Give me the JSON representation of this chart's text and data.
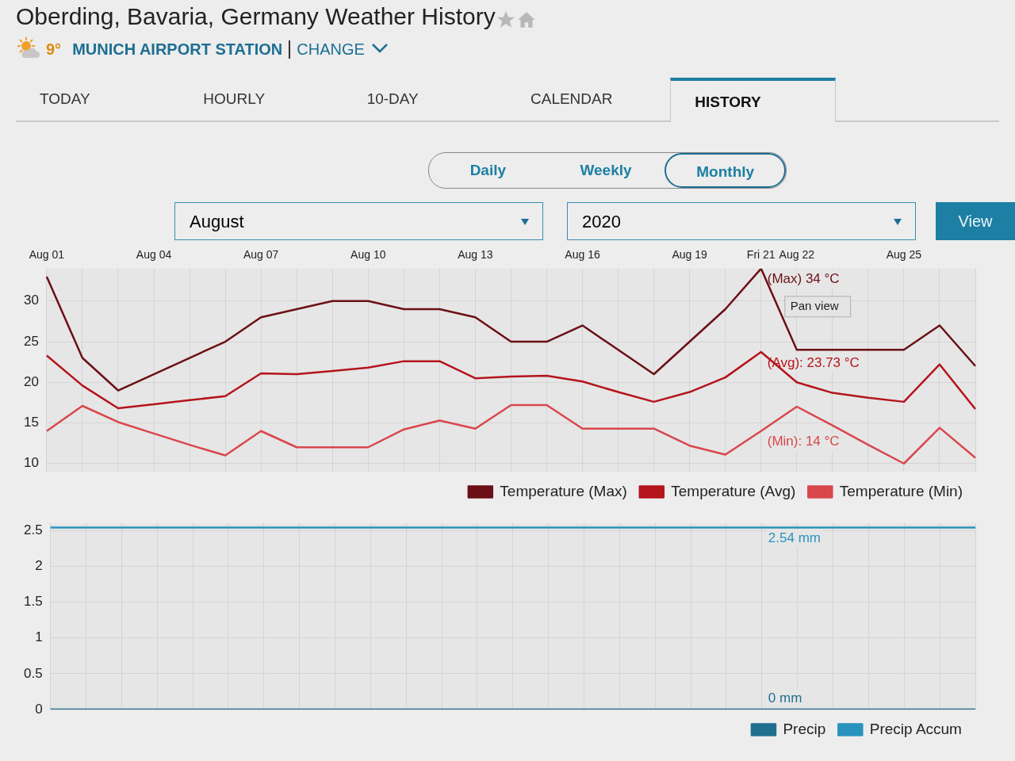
{
  "chart_data": [
    {
      "type": "other",
      "title": "Oberding, Bavaria, Germany Weather History",
      "annotations": [
        "9°",
        "MUNICH AIRPORT STATION",
        "CHANGE",
        "TODAY",
        "HOURLY",
        "10-DAY",
        "CALENDAR",
        "HISTORY",
        "Daily",
        "Weekly",
        "Monthly",
        "August",
        "2020",
        "View"
      ]
    },
    {
      "type": "line",
      "categories": [
        "Aug 01",
        null,
        null,
        "Aug 04",
        null,
        null,
        "Aug 07",
        null,
        null,
        "Aug 10",
        null,
        null,
        "Aug 13",
        null,
        null,
        "Aug 16",
        null,
        null,
        "Aug 19",
        null,
        "Fri 21",
        "Aug 22",
        null,
        null,
        "Aug 25",
        null,
        null
      ],
      "series": [
        {
          "name": "Temperature (Max)",
          "color": "#6b1016",
          "values": [
            33,
            23,
            19,
            21,
            23,
            25,
            28,
            29,
            30,
            30,
            29,
            29,
            28,
            25,
            25,
            27,
            24,
            21,
            25,
            29,
            34,
            24,
            24,
            24,
            24,
            27,
            22
          ],
          "value_labels": [
            null,
            null,
            null,
            null,
            null,
            null,
            null,
            null,
            null,
            null,
            null,
            null,
            null,
            null,
            null,
            null,
            null,
            null,
            null,
            null,
            "(Max) 34 °C",
            null,
            null,
            null,
            null,
            null,
            null
          ]
        },
        {
          "name": "Temperature (Avg)",
          "color": "#b5141c",
          "values": [
            23.3,
            19.6,
            16.8,
            17.3,
            17.8,
            18.3,
            21.1,
            21,
            21.4,
            21.8,
            22.6,
            22.6,
            20.5,
            20.7,
            20.8,
            20.1,
            18.8,
            17.6,
            18.8,
            20.6,
            23.73,
            20,
            18.7,
            18.1,
            17.6,
            22.2,
            16.7
          ],
          "value_labels": [
            null,
            null,
            null,
            null,
            null,
            null,
            null,
            null,
            null,
            null,
            null,
            null,
            null,
            null,
            null,
            null,
            null,
            null,
            null,
            null,
            "(Avg): 23.73 °C",
            null,
            null,
            null,
            null,
            null,
            null
          ]
        },
        {
          "name": "Temperature (Min)",
          "color": "#d9474c",
          "values": [
            14,
            17.1,
            15.1,
            13.7,
            12.3,
            11,
            14,
            12,
            12,
            12,
            14.2,
            15.3,
            14.3,
            17.2,
            17.2,
            14.3,
            14.3,
            14.3,
            12.2,
            11.1,
            14,
            17,
            14.7,
            12.3,
            10,
            14.4,
            10.7
          ],
          "value_labels": [
            null,
            null,
            null,
            null,
            null,
            null,
            null,
            null,
            null,
            null,
            null,
            null,
            null,
            null,
            null,
            null,
            null,
            null,
            null,
            null,
            "(Min): 14 °C",
            null,
            null,
            null,
            null,
            null,
            null
          ]
        }
      ],
      "ylim": [
        9,
        34
      ],
      "yticks": [
        10,
        15,
        20,
        25,
        30
      ],
      "grid": true,
      "legend": "bottom right",
      "marker": "none",
      "line_style": "solid",
      "annotations": [
        "Pan view"
      ]
    },
    {
      "type": "line",
      "categories": [
        null,
        null,
        null,
        null,
        null,
        null,
        null,
        null,
        null,
        null,
        null,
        null,
        null,
        null,
        null,
        null,
        null,
        null,
        null,
        null,
        null,
        null,
        null,
        null,
        null,
        null,
        null
      ],
      "series": [
        {
          "name": "Precip",
          "color": "#1f6f8f",
          "values": [
            0,
            0,
            0,
            0,
            0,
            0,
            0,
            0,
            0,
            0,
            0,
            0,
            0,
            0,
            0,
            0,
            0,
            0,
            0,
            0,
            0,
            0,
            0,
            0,
            0,
            0,
            0
          ],
          "value_labels": [
            null,
            null,
            null,
            null,
            null,
            null,
            null,
            null,
            null,
            null,
            null,
            null,
            null,
            null,
            null,
            null,
            null,
            null,
            null,
            null,
            "0 mm",
            null,
            null,
            null,
            null,
            null,
            null
          ]
        },
        {
          "name": "Precip Accum",
          "color": "#2a93bd",
          "values": [
            2.54,
            2.54,
            2.54,
            2.54,
            2.54,
            2.54,
            2.54,
            2.54,
            2.54,
            2.54,
            2.54,
            2.54,
            2.54,
            2.54,
            2.54,
            2.54,
            2.54,
            2.54,
            2.54,
            2.54,
            2.54,
            2.54,
            2.54,
            2.54,
            2.54,
            2.54,
            2.54
          ],
          "value_labels": [
            null,
            null,
            null,
            null,
            null,
            null,
            null,
            null,
            null,
            null,
            null,
            null,
            null,
            null,
            null,
            null,
            null,
            null,
            null,
            null,
            "2.54 mm",
            null,
            null,
            null,
            null,
            null,
            null
          ]
        }
      ],
      "ylim": [
        0,
        2.6
      ],
      "yticks": [
        0,
        0.5,
        1,
        1.5,
        2,
        2.5
      ],
      "grid": true,
      "legend": "bottom right",
      "marker": "none",
      "line_style": "solid",
      "tick_labels": "y"
    }
  ]
}
